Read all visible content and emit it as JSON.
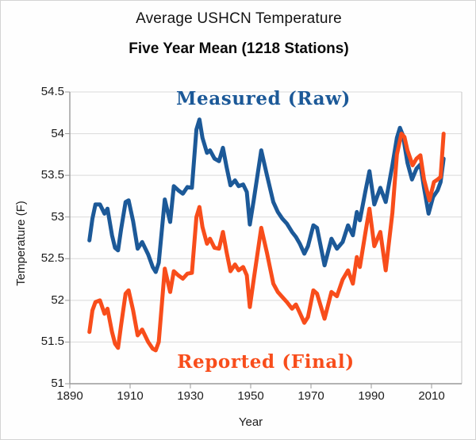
{
  "header": {
    "title": "Average USHCN Temperature",
    "subtitle": "Five Year Mean (1218 Stations)"
  },
  "chart_data": {
    "type": "line",
    "title": "Average USHCN Temperature",
    "subtitle": "Five Year Mean (1218 Stations)",
    "xlabel": "Year",
    "ylabel": "Temperature (F)",
    "xlim": [
      1890,
      2020
    ],
    "ylim": [
      51,
      54.5
    ],
    "x_ticks": [
      1890,
      1910,
      1930,
      1950,
      1970,
      1990,
      2010
    ],
    "x_tick_labels": [
      "1890",
      "1910",
      "1930",
      "1950",
      "1970",
      "1990",
      "2010"
    ],
    "y_ticks": [
      51,
      51.5,
      52,
      52.5,
      53,
      53.5,
      54,
      54.5
    ],
    "y_tick_labels": [
      "51",
      "51.5",
      "52",
      "52.5",
      "53",
      "53.5",
      "54",
      "54.5"
    ],
    "grid": "horizontal",
    "legend_position": "inline-annotations",
    "colors": {
      "gridline": "#d9d9d9",
      "frame": "#c7c7c7",
      "axis": "#9a9a9a",
      "tick_text": "#1c1c1c"
    },
    "series": [
      {
        "name": "Measured (Raw)",
        "color": "#1c5998",
        "line_width": 5,
        "points": [
          [
            1896.5,
            52.72
          ],
          [
            1897.5,
            52.98
          ],
          [
            1898.5,
            53.15
          ],
          [
            1900,
            53.15
          ],
          [
            1901.5,
            53.04
          ],
          [
            1902.5,
            53.1
          ],
          [
            1904,
            52.78
          ],
          [
            1905,
            52.63
          ],
          [
            1906,
            52.6
          ],
          [
            1907,
            52.85
          ],
          [
            1908.5,
            53.18
          ],
          [
            1909.5,
            53.2
          ],
          [
            1911,
            52.95
          ],
          [
            1912.5,
            52.62
          ],
          [
            1914,
            52.7
          ],
          [
            1916,
            52.55
          ],
          [
            1917.5,
            52.4
          ],
          [
            1918.5,
            52.34
          ],
          [
            1919.5,
            52.45
          ],
          [
            1921.5,
            53.21
          ],
          [
            1923.3,
            52.94
          ],
          [
            1924.5,
            53.37
          ],
          [
            1926,
            53.32
          ],
          [
            1927.5,
            53.28
          ],
          [
            1929,
            53.36
          ],
          [
            1930.5,
            53.35
          ],
          [
            1932,
            54.05
          ],
          [
            1933,
            54.17
          ],
          [
            1934,
            53.95
          ],
          [
            1935.5,
            53.77
          ],
          [
            1936.5,
            53.8
          ],
          [
            1938,
            53.7
          ],
          [
            1939.5,
            53.67
          ],
          [
            1940.8,
            53.83
          ],
          [
            1942,
            53.6
          ],
          [
            1943.3,
            53.38
          ],
          [
            1944.8,
            53.44
          ],
          [
            1946,
            53.37
          ],
          [
            1947.5,
            53.39
          ],
          [
            1948.7,
            53.3
          ],
          [
            1949.7,
            52.91
          ],
          [
            1951,
            53.2
          ],
          [
            1953.5,
            53.8
          ],
          [
            1955.4,
            53.5
          ],
          [
            1957.5,
            53.18
          ],
          [
            1959,
            53.06
          ],
          [
            1960.5,
            52.98
          ],
          [
            1962,
            52.92
          ],
          [
            1963.7,
            52.82
          ],
          [
            1965,
            52.76
          ],
          [
            1966.3,
            52.68
          ],
          [
            1967.8,
            52.56
          ],
          [
            1969,
            52.65
          ],
          [
            1970.8,
            52.9
          ],
          [
            1972,
            52.87
          ],
          [
            1974.5,
            52.42
          ],
          [
            1976.8,
            52.74
          ],
          [
            1978.6,
            52.62
          ],
          [
            1980.5,
            52.7
          ],
          [
            1982.3,
            52.9
          ],
          [
            1983.9,
            52.78
          ],
          [
            1985.2,
            53.06
          ],
          [
            1986.2,
            52.96
          ],
          [
            1988,
            53.3
          ],
          [
            1989.4,
            53.55
          ],
          [
            1991,
            53.15
          ],
          [
            1993,
            53.35
          ],
          [
            1994.8,
            53.18
          ],
          [
            1997,
            53.62
          ],
          [
            1998.5,
            53.95
          ],
          [
            1999.5,
            54.07
          ],
          [
            2000.5,
            53.98
          ],
          [
            2002,
            53.65
          ],
          [
            2003.5,
            53.45
          ],
          [
            2005,
            53.58
          ],
          [
            2006.3,
            53.63
          ],
          [
            2007.5,
            53.35
          ],
          [
            2009,
            53.04
          ],
          [
            2010.5,
            53.24
          ],
          [
            2012,
            53.32
          ],
          [
            2013,
            53.42
          ],
          [
            2014,
            53.7
          ]
        ]
      },
      {
        "name": "Reported (Final)",
        "color": "#f84d1b",
        "line_width": 5,
        "points": [
          [
            1896.5,
            51.62
          ],
          [
            1897.5,
            51.88
          ],
          [
            1898.5,
            51.98
          ],
          [
            1900,
            52.0
          ],
          [
            1901.5,
            51.84
          ],
          [
            1902.5,
            51.9
          ],
          [
            1904,
            51.62
          ],
          [
            1905,
            51.48
          ],
          [
            1906,
            51.43
          ],
          [
            1907,
            51.7
          ],
          [
            1908.5,
            52.08
          ],
          [
            1909.5,
            52.12
          ],
          [
            1911,
            51.88
          ],
          [
            1912.5,
            51.58
          ],
          [
            1914,
            51.65
          ],
          [
            1916,
            51.5
          ],
          [
            1917.5,
            51.42
          ],
          [
            1918.5,
            51.4
          ],
          [
            1919.5,
            51.5
          ],
          [
            1921.5,
            52.38
          ],
          [
            1923.3,
            52.1
          ],
          [
            1924.5,
            52.35
          ],
          [
            1926,
            52.3
          ],
          [
            1927.5,
            52.26
          ],
          [
            1929,
            52.32
          ],
          [
            1930.5,
            52.33
          ],
          [
            1932,
            53.0
          ],
          [
            1933,
            53.12
          ],
          [
            1934,
            52.88
          ],
          [
            1935.5,
            52.68
          ],
          [
            1936.5,
            52.74
          ],
          [
            1938,
            52.63
          ],
          [
            1939.5,
            52.62
          ],
          [
            1940.8,
            52.82
          ],
          [
            1942,
            52.58
          ],
          [
            1943.3,
            52.35
          ],
          [
            1944.8,
            52.43
          ],
          [
            1946,
            52.36
          ],
          [
            1947.5,
            52.4
          ],
          [
            1948.7,
            52.3
          ],
          [
            1949.7,
            51.92
          ],
          [
            1951,
            52.25
          ],
          [
            1953.5,
            52.87
          ],
          [
            1955.4,
            52.57
          ],
          [
            1957.5,
            52.2
          ],
          [
            1959,
            52.1
          ],
          [
            1960.5,
            52.04
          ],
          [
            1962,
            51.98
          ],
          [
            1963.7,
            51.9
          ],
          [
            1965,
            51.95
          ],
          [
            1966.3,
            51.85
          ],
          [
            1967.8,
            51.73
          ],
          [
            1969,
            51.8
          ],
          [
            1970.8,
            52.12
          ],
          [
            1972,
            52.08
          ],
          [
            1974.5,
            51.78
          ],
          [
            1976.8,
            52.1
          ],
          [
            1978.6,
            52.05
          ],
          [
            1980.5,
            52.25
          ],
          [
            1982.3,
            52.36
          ],
          [
            1983.9,
            52.2
          ],
          [
            1985.2,
            52.52
          ],
          [
            1986.2,
            52.4
          ],
          [
            1988,
            52.8
          ],
          [
            1989.4,
            53.1
          ],
          [
            1991,
            52.65
          ],
          [
            1993,
            52.82
          ],
          [
            1994.8,
            52.36
          ],
          [
            1997,
            53.05
          ],
          [
            1998.5,
            53.75
          ],
          [
            2000,
            54.0
          ],
          [
            2001,
            53.96
          ],
          [
            2002,
            53.8
          ],
          [
            2003.7,
            53.62
          ],
          [
            2005,
            53.7
          ],
          [
            2006.3,
            53.74
          ],
          [
            2007.5,
            53.45
          ],
          [
            2009.3,
            53.2
          ],
          [
            2010.8,
            53.42
          ],
          [
            2012,
            53.45
          ],
          [
            2013,
            53.48
          ],
          [
            2014,
            54.0
          ]
        ]
      }
    ]
  }
}
